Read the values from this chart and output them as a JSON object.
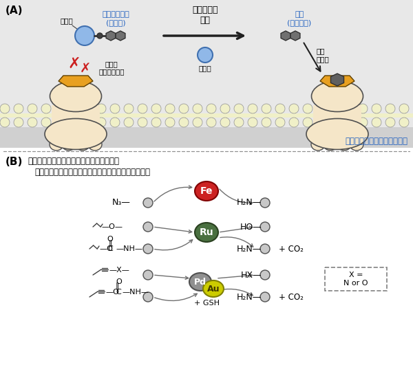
{
  "panel_A_label": "(A)",
  "panel_B_label": "(B)",
  "title_A_arrow": "生体直交型\n反応",
  "prodrug_label": "プロドラッグ\n(不活性)",
  "drug_label": "薬剤\n(活性あり)",
  "protgroup_label": "保護基",
  "cannot_bind_label": "標的に\n結合できない",
  "deprotect_label": "脱保護",
  "affinity_label": "高い\n親和性",
  "target_label": "薬剤標的（タンパク質など）",
  "B_text1": "これまでの保護基：複数種類の金属と反応",
  "B_text2": "保護基が小さく薬剤の活性や動態があまり変化しない",
  "Fe_label": "Fe",
  "Ru_label": "Ru",
  "Pd_label": "Pd",
  "Au_label": "Au",
  "GSH_label": "+ GSH",
  "xnoro_label": "X =\nN or O",
  "background_color": "#ffffff",
  "panel_A_bg": "#e8e8e8",
  "panel_A_sub_bg": "#d0d0d0",
  "protein_body_color": "#f5e6c8",
  "protein_orange_color": "#e8a020",
  "blue_circle_color": "#90b8e8",
  "Fe_color": "#cc2222",
  "Ru_color": "#4a7040",
  "Pd_color": "#909090",
  "Au_color": "#cccc00",
  "blue_text_color": "#2060c0",
  "red_x_color": "#cc2020",
  "mol_fill": "#c8c8c8",
  "mol_edge": "#505050",
  "drug_fill": "#707070",
  "drug_edge": "#303030",
  "arrow_gray": "#707070",
  "line_gray": "#505050"
}
